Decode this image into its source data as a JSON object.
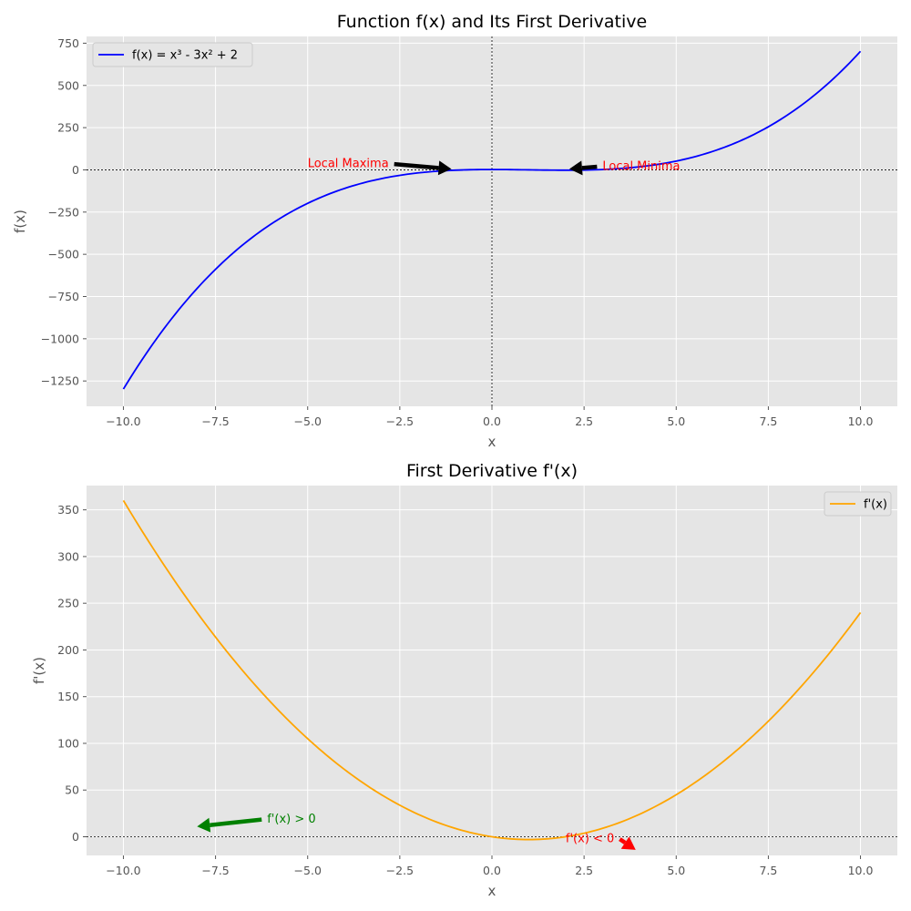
{
  "chart_data": [
    {
      "type": "line",
      "title": "Function f(x) and Its First Derivative",
      "xlabel": "x",
      "ylabel": "f(x)",
      "xlim": [
        -11,
        11
      ],
      "ylim": [
        -1400,
        790
      ],
      "x_ticks": [
        -10,
        -7.5,
        -5,
        -2.5,
        0,
        2.5,
        5,
        7.5,
        10
      ],
      "x_tick_labels": [
        "−10.0",
        "−7.5",
        "−5.0",
        "−2.5",
        "0.0",
        "2.5",
        "5.0",
        "7.5",
        "10.0"
      ],
      "y_ticks": [
        -1250,
        -1000,
        -750,
        -500,
        -250,
        0,
        250,
        500,
        750
      ],
      "y_tick_labels": [
        "−1250",
        "−1000",
        "−750",
        "−500",
        "−250",
        "0",
        "250",
        "500",
        "750"
      ],
      "grid": true,
      "legend_position": "top-left",
      "series": [
        {
          "name": "f(x) = x³ - 3x² + 2",
          "color": "#0000ff",
          "function": "cubic",
          "coefficients": [
            1,
            -3,
            0,
            2
          ],
          "x_range": [
            -10,
            10
          ]
        }
      ],
      "reference_lines": [
        {
          "axis": "y",
          "value": 0
        },
        {
          "axis": "x",
          "value": 0
        }
      ],
      "annotations": [
        {
          "text": "Local Maxima",
          "text_x": -5.0,
          "text_y": 15,
          "arrow_x": -1.1,
          "arrow_y": 5,
          "color": "#ff0000",
          "arrow_color": "#000000"
        },
        {
          "text": "Local Minima",
          "text_x": 3.0,
          "text_y": 0,
          "arrow_x": 2.1,
          "arrow_y": 5,
          "color": "#ff0000",
          "arrow_color": "#000000"
        }
      ]
    },
    {
      "type": "line",
      "title": "First Derivative f'(x)",
      "xlabel": "x",
      "ylabel": "f'(x)",
      "xlim": [
        -11,
        11
      ],
      "ylim": [
        -20,
        376
      ],
      "x_ticks": [
        -10,
        -7.5,
        -5,
        -2.5,
        0,
        2.5,
        5,
        7.5,
        10
      ],
      "x_tick_labels": [
        "−10.0",
        "−7.5",
        "−5.0",
        "−2.5",
        "0.0",
        "2.5",
        "5.0",
        "7.5",
        "10.0"
      ],
      "y_ticks": [
        0,
        50,
        100,
        150,
        200,
        250,
        300,
        350
      ],
      "y_tick_labels": [
        "0",
        "50",
        "100",
        "150",
        "200",
        "250",
        "300",
        "350"
      ],
      "grid": true,
      "legend_position": "top-right",
      "series": [
        {
          "name": "f'(x)",
          "color": "#ffa500",
          "function": "quadratic",
          "coefficients": [
            3,
            -6,
            0
          ],
          "x_range": [
            -10,
            10
          ]
        }
      ],
      "reference_lines": [
        {
          "axis": "y",
          "value": 0
        }
      ],
      "annotations": [
        {
          "text": "f'(x) > 0",
          "text_x": -6.1,
          "text_y": 15,
          "arrow_x": -8.0,
          "arrow_y": 11,
          "color": "#008000",
          "arrow_color": "#008000"
        },
        {
          "text": "f'(x) < 0",
          "text_x": 2.0,
          "text_y": -6,
          "arrow_x": 3.9,
          "arrow_y": -14,
          "color": "#ff0000",
          "arrow_color": "#ff0000"
        }
      ]
    }
  ]
}
